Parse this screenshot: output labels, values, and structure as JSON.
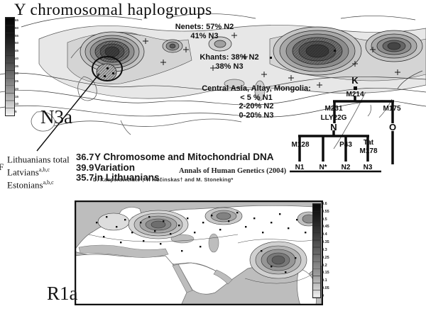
{
  "title": "Y chromosomal haplogroups",
  "map_labels": {
    "top": "N3a",
    "bottom": "R1a"
  },
  "top_map": {
    "annotations": {
      "nenets": {
        "line1": "Nenets: 57% N2",
        "line2": "41% N3"
      },
      "khants": {
        "line1": "Khants: 38% N2",
        "line2": "38% N3"
      },
      "central_asia": {
        "title": "Central Asia, Altay, Mongolia:",
        "line1": "<  5 % N1",
        "line2": "2-20% N2",
        "line3": "0-20% N3"
      }
    },
    "scale_labels": [
      "65",
      "60",
      "55",
      "50",
      "45",
      "40",
      "35",
      "30",
      "25",
      "20",
      "15",
      "10",
      "5"
    ]
  },
  "tree": {
    "nodes": {
      "k": "K",
      "m214": "M214",
      "m231": "M231",
      "lly22g": "LLY22G",
      "n": "N",
      "m175": "M175",
      "o": "O",
      "m128": "M128",
      "p43": "P43",
      "tat": "Tat",
      "m178": "M178",
      "n1": "N1",
      "nstar": "N*",
      "n2": "N2",
      "n3": "N3"
    }
  },
  "study": {
    "edge_fragment": "F",
    "populations": [
      {
        "name": "Lithuanians total",
        "sup": "",
        "value": "36.7"
      },
      {
        "name": "Latvians",
        "sup": "a,b,c",
        "value": "39.9"
      },
      {
        "name": "Estonians",
        "sup": "a,b,c",
        "value": "35.7"
      }
    ],
    "title_line1": "Y Chromosome and Mitochondrial DNA Variation",
    "title_line2": "in Lithuanians",
    "journal": "Annals of Human Genetics (2004)",
    "authors": "D. Kasperavičiūtė*, V. Kučinskas† and M. Stoneking*"
  },
  "bottom_map": {
    "scale_labels": [
      "0.6",
      "0.55",
      "0.5",
      "0.45",
      "0.4",
      "0.35",
      "0.3",
      "0.25",
      "0.2",
      "0.15",
      "0.1",
      "0.05",
      "0"
    ]
  }
}
